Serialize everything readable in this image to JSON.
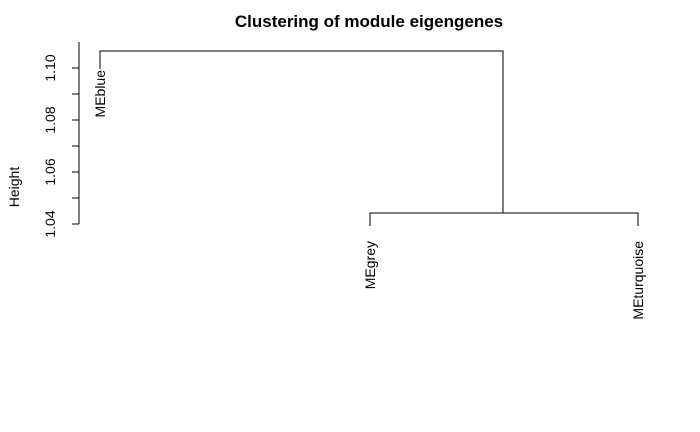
{
  "chart_data": {
    "type": "dendrogram",
    "title": "Clustering of module eigengenes",
    "ylabel": "Height",
    "yticks": [
      "1.04",
      "1.06",
      "1.08",
      "1.10"
    ],
    "ylim": [
      1.04,
      1.1
    ],
    "leaves": [
      "MEblue",
      "MEgrey",
      "MEturquoise"
    ],
    "merges": [
      {
        "children": [
          "MEgrey",
          "MEturquoise"
        ],
        "height": 1.04
      },
      {
        "children": [
          "MEblue",
          "MEgrey+MEturquoise"
        ],
        "height": 1.107
      }
    ]
  }
}
